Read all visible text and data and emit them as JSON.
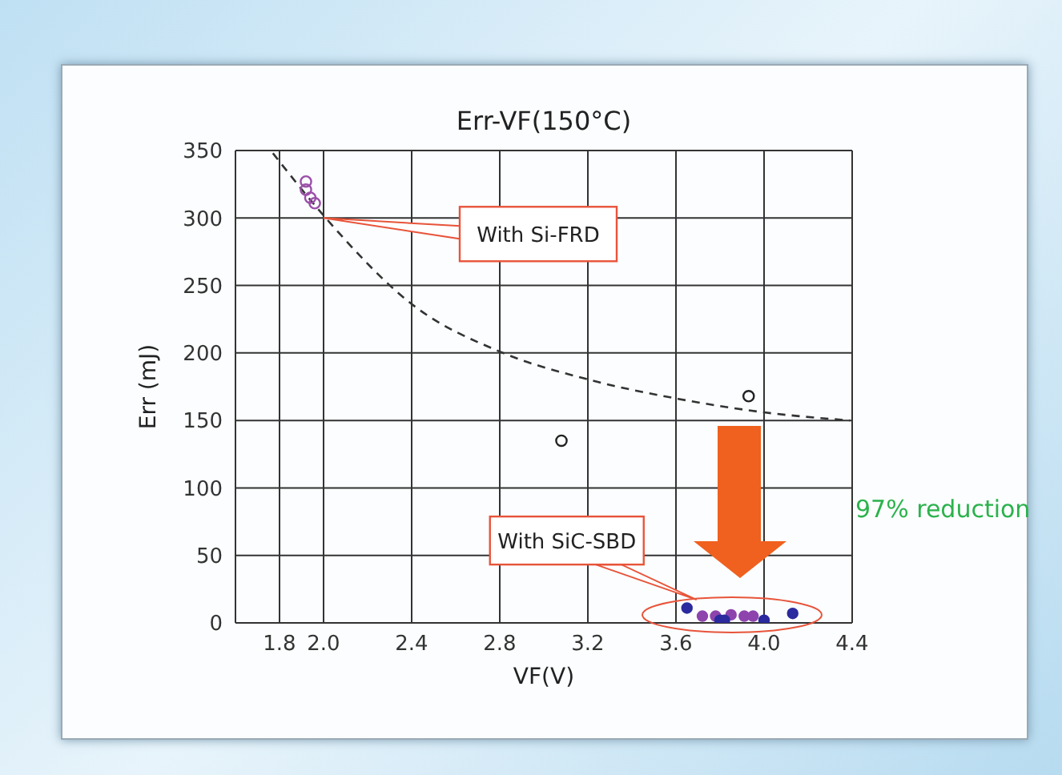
{
  "chart_data": {
    "type": "scatter",
    "title": "Err-VF(150°C)",
    "xlabel": "VF(V)",
    "ylabel": "Err (mJ)",
    "xlim": [
      1.6,
      4.4
    ],
    "xticks": [
      1.8,
      {
        "value": 2,
        "label": "2.0"
      },
      2.4,
      2.8,
      3.2,
      3.6,
      {
        "value": 4,
        "label": "4.0"
      },
      4.4
    ],
    "ylim": [
      0,
      350
    ],
    "yticks": [
      0,
      50,
      100,
      150,
      200,
      250,
      300,
      350
    ],
    "grid": true,
    "marker": "circle",
    "series": [
      {
        "type": "line",
        "color": "#333333",
        "line_style": "dashed",
        "marker": "none",
        "x": [
          1.77,
          2.01,
          2.41,
          2.8,
          3.21,
          3.61,
          4.0,
          4.39
        ],
        "values": [
          348,
          300,
          235,
          201,
          180,
          166,
          156,
          150
        ]
      },
      {
        "color": "#9b4fa8",
        "x": [
          1.92,
          1.92,
          1.94,
          1.96
        ],
        "values": [
          327,
          321,
          315,
          311
        ]
      },
      {
        "color": "#222222",
        "x": [
          3.08,
          3.93
        ],
        "values": [
          135,
          168
        ]
      },
      {
        "color": "#8e44ad",
        "x": [
          3.72,
          3.78,
          3.85,
          3.91,
          3.95
        ],
        "values": [
          5,
          5,
          6,
          5,
          5
        ]
      },
      {
        "color": "#2b2a9e",
        "x": [
          3.65,
          3.8,
          3.82,
          4.0,
          4.13
        ],
        "values": [
          11,
          2,
          2,
          2,
          7
        ]
      }
    ],
    "annotations": [
      {
        "text": "With Si-FRD",
        "x": 2.0,
        "y": 300
      },
      {
        "text": "With SiC-SBD",
        "x": 3.65,
        "y": 10
      },
      "97% reduction"
    ]
  }
}
